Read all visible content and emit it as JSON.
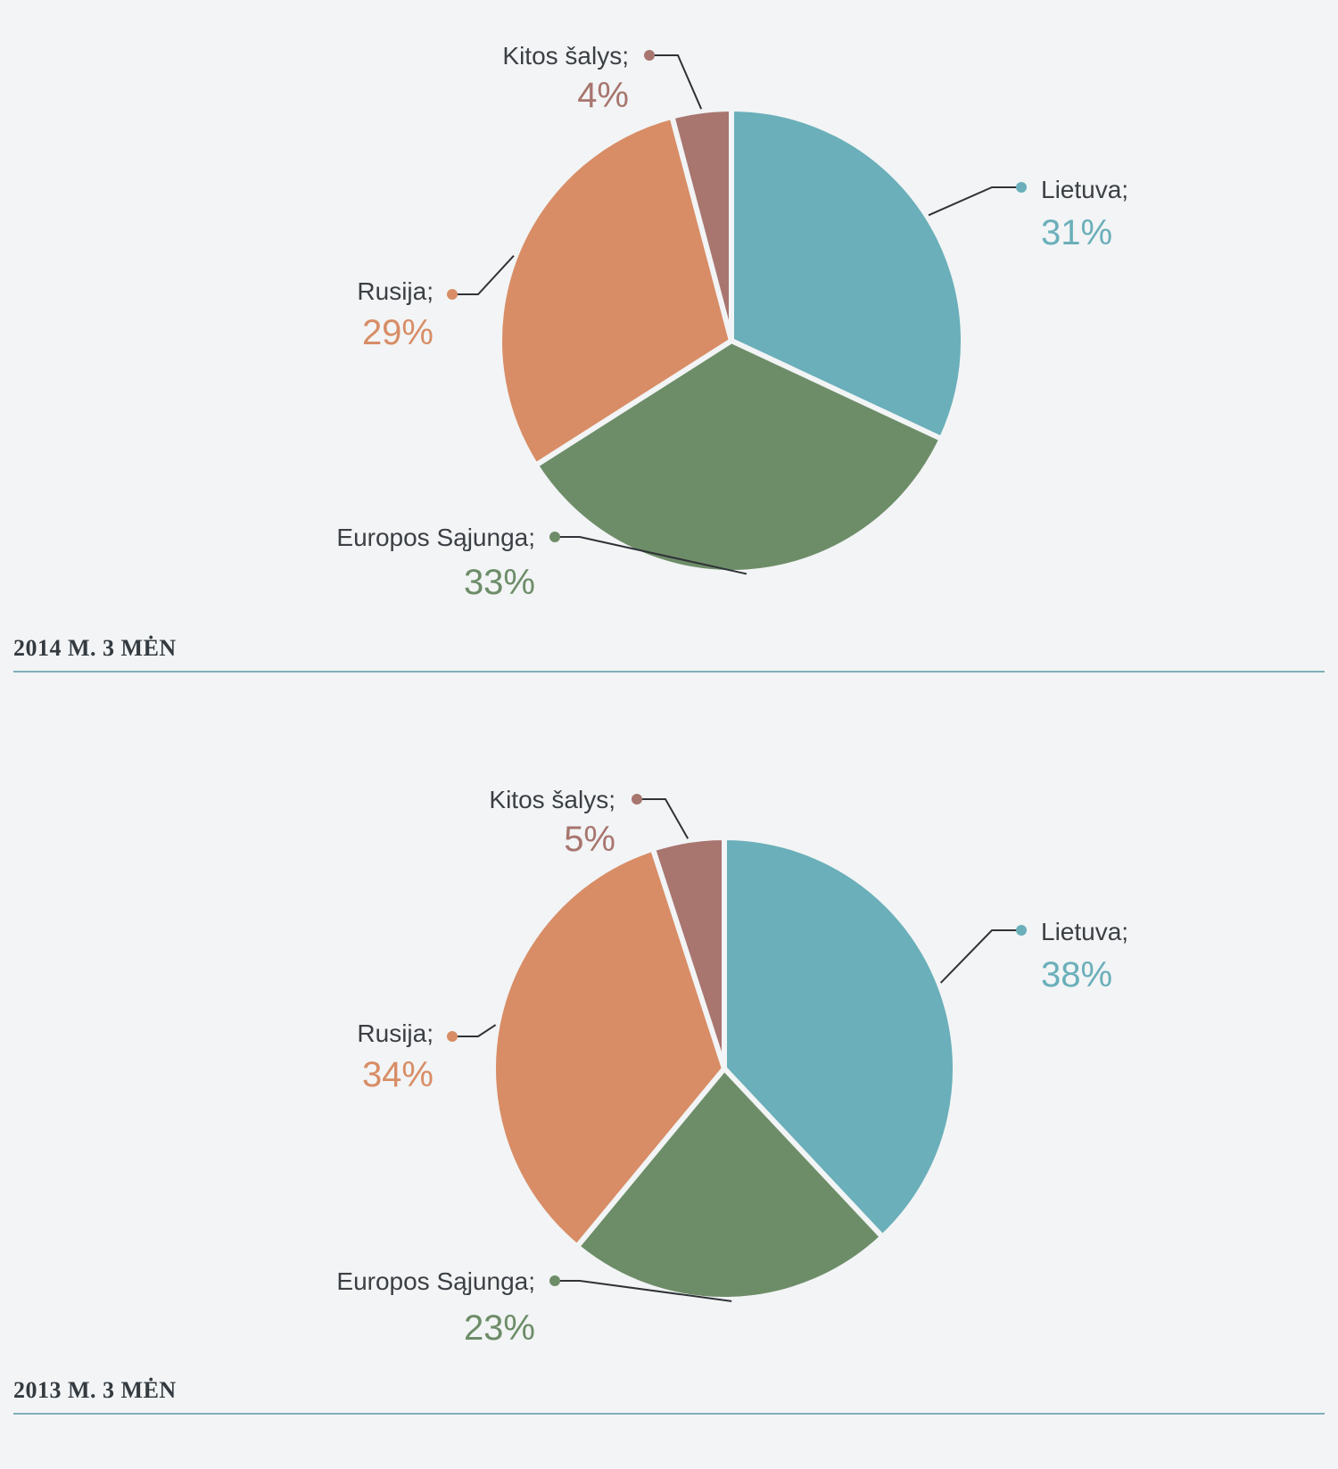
{
  "colors": {
    "Lietuva": "#6aafba",
    "Europos Sąjunga": "#6d8d68",
    "Rusija": "#d88d66",
    "Kitos šalys": "#a8756f",
    "leader": "#2f3337",
    "rule": "#7fb0ba"
  },
  "chart_data": [
    {
      "type": "pie",
      "title": "2014 M. 3 MĖN",
      "categories": [
        "Lietuva",
        "Europos Sąjunga",
        "Rusija",
        "Kitos šalys"
      ],
      "labels": [
        "Lietuva;",
        "Europos Sąjunga;",
        "Rusija;",
        "Kitos šalys;"
      ],
      "values": [
        31,
        33,
        29,
        4
      ],
      "value_labels": [
        "31%",
        "33%",
        "29%",
        "4%"
      ],
      "legend": "none"
    },
    {
      "type": "pie",
      "title": "2013 M. 3 MĖN",
      "categories": [
        "Lietuva",
        "Europos Sąjunga",
        "Rusija",
        "Kitos šalys"
      ],
      "labels": [
        "Lietuva;",
        "Europos Sąjunga;",
        "Rusija;",
        "Kitos šalys;"
      ],
      "values": [
        38,
        23,
        34,
        5
      ],
      "value_labels": [
        "38%",
        "23%",
        "34%",
        "5%"
      ],
      "legend": "none"
    }
  ]
}
